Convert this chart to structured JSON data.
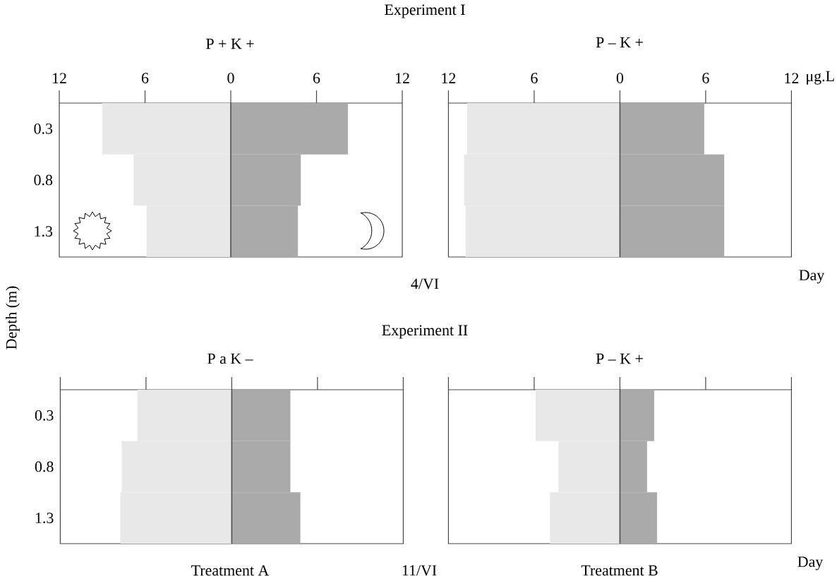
{
  "chart_data": [
    {
      "type": "bar",
      "orientation": "horizontal",
      "stacked": true,
      "title": "P + K +",
      "ylabel": "Depth (m)",
      "annotations": [
        "Experiment I",
        "4/VI"
      ],
      "categories": [
        "0.3",
        "0.8",
        "1.3"
      ],
      "series": [
        {
          "color": "#e8e8e8",
          "values": [
            -9.0,
            -6.8,
            -5.9
          ]
        },
        {
          "color": "#aaaaaa",
          "values": [
            8.2,
            4.9,
            4.7
          ]
        }
      ],
      "xlim": [
        -12,
        12
      ],
      "xticks": [
        {
          "value": -12,
          "label": "12"
        },
        {
          "value": -6,
          "label": "6"
        },
        0,
        6,
        12
      ],
      "ref_lines": [
        {
          "axis": "x",
          "value": 0,
          "color": "#4d4d4d"
        }
      ]
    },
    {
      "type": "bar",
      "orientation": "horizontal",
      "stacked": true,
      "title": "P – K +",
      "xlabel": "μg.L",
      "annotations": [
        "Day"
      ],
      "categories": [
        "0.3",
        "0.8",
        "1.3"
      ],
      "series": [
        {
          "color": "#e8e8e8",
          "values": [
            -10.7,
            -10.9,
            -10.8
          ]
        },
        {
          "color": "#aaaaaa",
          "values": [
            5.9,
            7.3,
            7.3
          ]
        }
      ],
      "xlim": [
        -12,
        12
      ],
      "xticks": [
        {
          "value": -12,
          "label": "12"
        },
        {
          "value": -6,
          "label": "6"
        },
        0,
        6,
        12
      ],
      "ref_lines": [
        {
          "axis": "x",
          "value": 0,
          "color": "#4d4d4d"
        }
      ],
      "tick_labels": "x"
    },
    {
      "type": "bar",
      "orientation": "horizontal",
      "stacked": true,
      "title": "P a K –",
      "xlabel": "Treatment A",
      "annotations": [
        "Experiment II",
        "11/VI"
      ],
      "categories": [
        "0.3",
        "0.8",
        "1.3"
      ],
      "series": [
        {
          "color": "#e8e8e8",
          "values": [
            -6.6,
            -7.7,
            -7.8
          ]
        },
        {
          "color": "#aaaaaa",
          "values": [
            4.1,
            4.1,
            4.8
          ]
        }
      ],
      "xlim": [
        -12,
        12
      ],
      "xticks": [
        {
          "value": -12,
          "label": null
        },
        {
          "value": -6,
          "label": null
        },
        {
          "value": 0,
          "label": null
        },
        {
          "value": 6,
          "label": null
        },
        {
          "value": 12,
          "label": null
        }
      ],
      "ref_lines": [
        {
          "axis": "x",
          "value": 0,
          "color": "#4d4d4d"
        }
      ],
      "tick_labels": "y"
    },
    {
      "type": "bar",
      "orientation": "horizontal",
      "stacked": true,
      "title": "P – K +",
      "xlabel": "Treatment B",
      "annotations": [
        "Day"
      ],
      "categories": [
        "0.3",
        "0.8",
        "1.3"
      ],
      "series": [
        {
          "color": "#e8e8e8",
          "values": [
            -5.9,
            -4.3,
            -4.9
          ]
        },
        {
          "color": "#aaaaaa",
          "values": [
            2.4,
            1.9,
            2.6
          ]
        }
      ],
      "xlim": [
        -12,
        12
      ],
      "xticks": [
        {
          "value": -12,
          "label": null
        },
        {
          "value": -6,
          "label": null
        },
        {
          "value": 0,
          "label": null
        },
        {
          "value": 6,
          "label": null
        },
        {
          "value": 12,
          "label": null
        }
      ],
      "ref_lines": [
        {
          "axis": "x",
          "value": 0,
          "color": "#4d4d4d"
        }
      ],
      "tick_labels": false
    }
  ]
}
